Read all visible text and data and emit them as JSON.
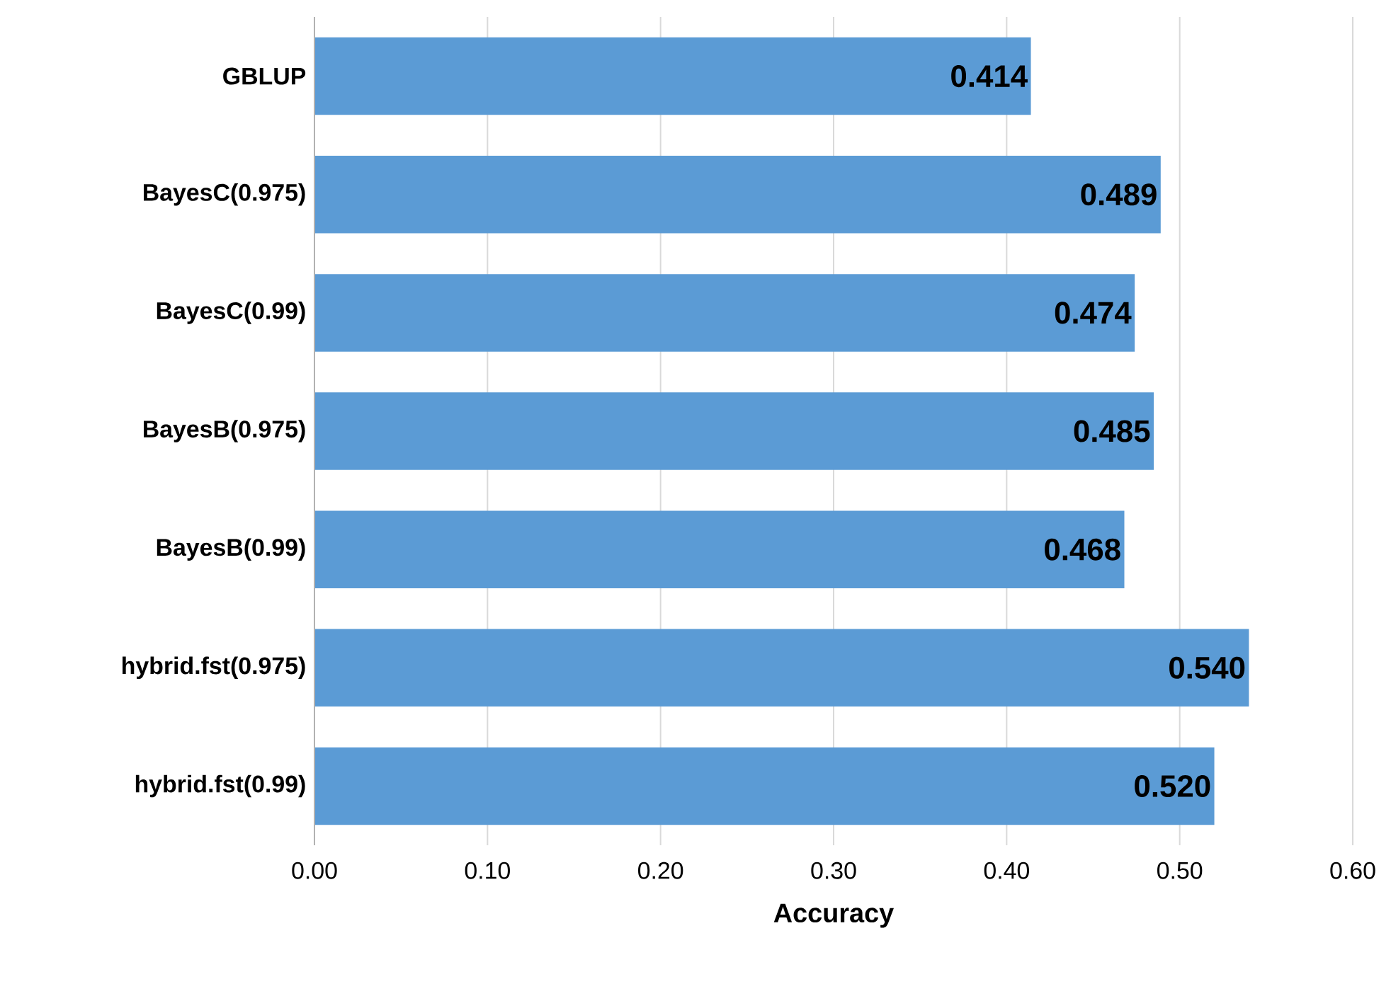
{
  "chart_data": {
    "type": "bar",
    "orientation": "horizontal",
    "xlabel": "Accuracy",
    "categories": [
      "GBLUP",
      "BayesC(0.975)",
      "BayesC(0.99)",
      "BayesB(0.975)",
      "BayesB(0.99)",
      "hybrid.fst(0.975)",
      "hybrid.fst(0.99)"
    ],
    "values": [
      0.414,
      0.489,
      0.474,
      0.485,
      0.468,
      0.54,
      0.52
    ],
    "value_labels": [
      "0.414",
      "0.489",
      "0.474",
      "0.485",
      "0.468",
      "0.540",
      "0.520"
    ],
    "color": "#5b9bd5",
    "xlim": [
      0,
      0.6
    ],
    "xticks": [
      {
        "value": 0,
        "label": "0.00"
      },
      {
        "value": 0.1,
        "label": "0.10"
      },
      {
        "value": 0.2,
        "label": "0.20"
      },
      {
        "value": 0.3,
        "label": "0.30"
      },
      {
        "value": 0.4,
        "label": "0.40"
      },
      {
        "value": 0.5,
        "label": "0.50"
      },
      {
        "value": 0.6,
        "label": "0.60"
      }
    ],
    "grid": "x"
  }
}
